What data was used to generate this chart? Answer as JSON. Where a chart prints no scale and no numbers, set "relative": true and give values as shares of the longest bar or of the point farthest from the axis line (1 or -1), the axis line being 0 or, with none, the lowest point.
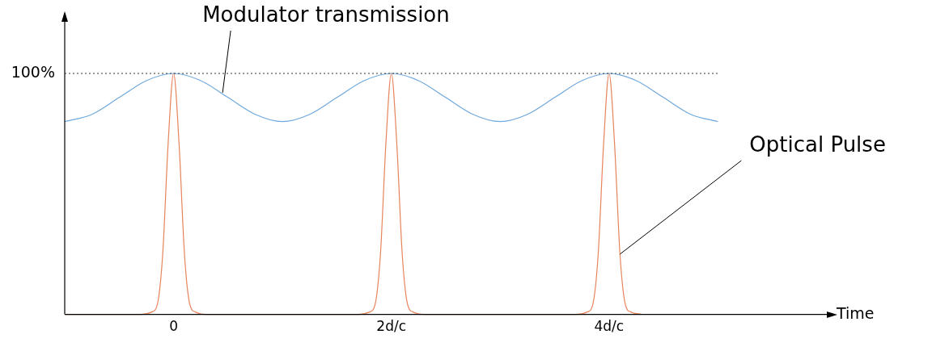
{
  "chart_data": {
    "type": "line",
    "relative": true,
    "xlabel": "Time",
    "xlim": [
      -1,
      6
    ],
    "xticks": [
      0,
      {
        "value": 2,
        "label": "2d/c"
      },
      {
        "value": 4,
        "label": "4d/c"
      }
    ],
    "series": [
      {
        "color": "#6fa8dc",
        "x": [
          -1,
          -0.75,
          -0.5,
          -0.25,
          0,
          0.25,
          0.5,
          0.75,
          1,
          1.25,
          1.5,
          1.75,
          2,
          2.25,
          2.5,
          2.75,
          3,
          3.25,
          3.5,
          3.75,
          4,
          4.25,
          4.5,
          4.75,
          5
        ],
        "values": [
          0.8,
          0.83,
          0.9,
          0.97,
          1,
          0.97,
          0.9,
          0.83,
          0.8,
          0.83,
          0.9,
          0.97,
          1,
          0.97,
          0.9,
          0.83,
          0.8,
          0.83,
          0.9,
          0.97,
          1,
          0.97,
          0.9,
          0.83,
          0.8
        ]
      },
      {
        "color": "#e8845c",
        "x": [
          -1,
          -0.3,
          -0.2,
          -0.15,
          -0.1,
          -0.05,
          0,
          0.05,
          0.1,
          0.15,
          0.2,
          0.3,
          1.7,
          1.8,
          1.85,
          1.9,
          1.95,
          2,
          2.05,
          2.1,
          2.15,
          2.2,
          2.3,
          3.7,
          3.8,
          3.85,
          3.9,
          3.95,
          4,
          4.05,
          4.1,
          4.15,
          4.2,
          4.3
        ],
        "values": [
          0,
          0,
          0.01,
          0.04,
          0.25,
          0.71,
          1,
          0.71,
          0.25,
          0.04,
          0.01,
          0,
          0,
          0.01,
          0.04,
          0.25,
          0.71,
          1,
          0.71,
          0.25,
          0.04,
          0.01,
          0,
          0,
          0.01,
          0.04,
          0.25,
          0.71,
          1,
          0.71,
          0.25,
          0.04,
          0.01,
          0
        ]
      }
    ],
    "ref_lines": [
      {
        "axis": "y",
        "value": 1,
        "label": "100%",
        "color": "#333333",
        "line_style": "dotted"
      }
    ],
    "annotations": [
      {
        "text": "Modulator transmission",
        "x": 0.45,
        "y": 0.92
      },
      {
        "text": "Optical Pulse",
        "x": 4.1,
        "y": 0.25
      }
    ],
    "grid": false,
    "legend": false,
    "marker": "none",
    "line_style": "solid"
  }
}
